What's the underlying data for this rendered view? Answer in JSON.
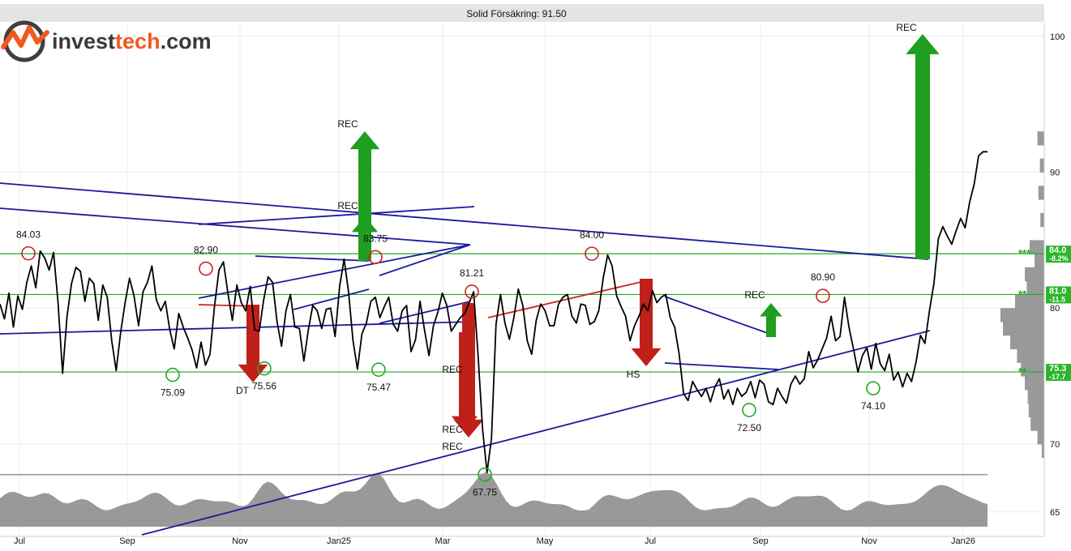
{
  "app": {
    "logo_text_a": "invest",
    "logo_text_b": "tech",
    "logo_text_c": ".com"
  },
  "chart_data": {
    "type": "line",
    "title": "Solid Försäkring: 91.50",
    "x_tick_labels": [
      "Jul",
      "Sep",
      "Nov",
      "Jan25",
      "Mar",
      "May",
      "Jul",
      "Sep",
      "Nov",
      "Jan26"
    ],
    "y_tick_labels": [
      "100",
      "90",
      "80",
      "70",
      "65"
    ],
    "y_ticks": [
      100,
      90,
      80,
      70,
      65
    ],
    "ylim": [
      63.2,
      101.0
    ],
    "grid": true,
    "series": [
      {
        "values": [
          80.3,
          79.2,
          81.1,
          78.6,
          80.9,
          79.9,
          81.9,
          83.1,
          81.5,
          84.2,
          83.7,
          82.8,
          84.1,
          80.4,
          75.2,
          79.4,
          81.8,
          83.0,
          82.7,
          80.5,
          82.2,
          81.8,
          79.1,
          81.7,
          80.8,
          77.6,
          75.4,
          78.2,
          80.4,
          82.2,
          80.9,
          78.7,
          81.2,
          81.9,
          83.1,
          80.6,
          79.8,
          80.5,
          78.4,
          77.0,
          79.6,
          78.6,
          77.8,
          76.9,
          75.6,
          77.5,
          75.8,
          76.6,
          80.1,
          82.8,
          83.4,
          81.1,
          79.1,
          81.7,
          80.4,
          79.8,
          81.6,
          78.4,
          78.3,
          80.6,
          82.3,
          81.9,
          79.0,
          77.2,
          79.8,
          81.0,
          78.6,
          78.5,
          76.1,
          78.4,
          80.2,
          79.8,
          78.5,
          79.9,
          80.0,
          77.9,
          81.6,
          83.6,
          81.2,
          77.6,
          75.5,
          78.1,
          78.9,
          80.5,
          80.8,
          79.3,
          80.1,
          80.8,
          78.8,
          78.3,
          79.8,
          80.2,
          76.8,
          77.7,
          80.5,
          78.4,
          76.5,
          78.7,
          79.7,
          81.1,
          80.2,
          78.3,
          78.8,
          79.3,
          79.6,
          80.4,
          81.2,
          76.5,
          71.1,
          67.9,
          70.4,
          78.8,
          81.0,
          78.9,
          77.7,
          79.3,
          81.4,
          80.2,
          77.6,
          76.6,
          79.1,
          80.3,
          79.8,
          78.7,
          78.7,
          80.3,
          80.8,
          81.0,
          79.4,
          78.9,
          80.3,
          80.2,
          78.8,
          79.0,
          79.8,
          82.2,
          83.9,
          83.1,
          80.9,
          80.1,
          79.4,
          77.6,
          78.7,
          79.4,
          80.3,
          79.8,
          81.3,
          80.4,
          80.8,
          81.0,
          79.3,
          78.6,
          76.6,
          73.7,
          73.2,
          74.6,
          74.0,
          73.5,
          74.1,
          73.1,
          74.2,
          74.8,
          73.3,
          74.0,
          72.9,
          74.1,
          73.5,
          73.8,
          74.6,
          73.4,
          74.7,
          74.4,
          73.1,
          72.9,
          74.1,
          73.5,
          73.0,
          74.4,
          75.0,
          74.4,
          74.8,
          76.8,
          75.6,
          76.2,
          77.0,
          77.8,
          79.4,
          77.6,
          77.9,
          80.8,
          78.6,
          77.0,
          75.3,
          76.5,
          77.1,
          75.5,
          77.4,
          75.9,
          75.4,
          76.6,
          74.7,
          75.3,
          74.2,
          75.2,
          74.6,
          76.0,
          78.0,
          77.4,
          79.8,
          81.8,
          85.1,
          86.0,
          85.3,
          84.7,
          85.7,
          86.6,
          85.9,
          87.8,
          89.1,
          91.2,
          91.5,
          91.5
        ]
      }
    ],
    "price_labels": [
      "84.03",
      "82.90",
      "83.75",
      "81.21",
      "84.00",
      "80.90",
      "75.09",
      "75.56",
      "75.47",
      "67.75",
      "72.50",
      "74.10"
    ],
    "signal_labels": [
      "REC",
      "REC",
      "REC",
      "REC",
      "REC",
      "REC",
      "REC",
      "DT",
      "HS"
    ],
    "horizontal_levels": [
      {
        "value": 84.0,
        "label": "84.0",
        "pct": "-8.2%",
        "stars": "***"
      },
      {
        "value": 81.0,
        "label": "81.0",
        "pct": "-11.5",
        "stars": "**"
      },
      {
        "value": 75.3,
        "label": "75.3",
        "pct": "-17.7",
        "stars": "**"
      }
    ],
    "support_line_gray": 67.75,
    "colors": {
      "price": "#000000",
      "trend": "#1a1a9e",
      "support": "#22aa22",
      "resistance_marker": "#cc2222",
      "buy_arrow": "#1f9e1f",
      "sell_arrow": "#c0201a",
      "volume": "#999999",
      "level_box": "#2bb52b"
    }
  }
}
